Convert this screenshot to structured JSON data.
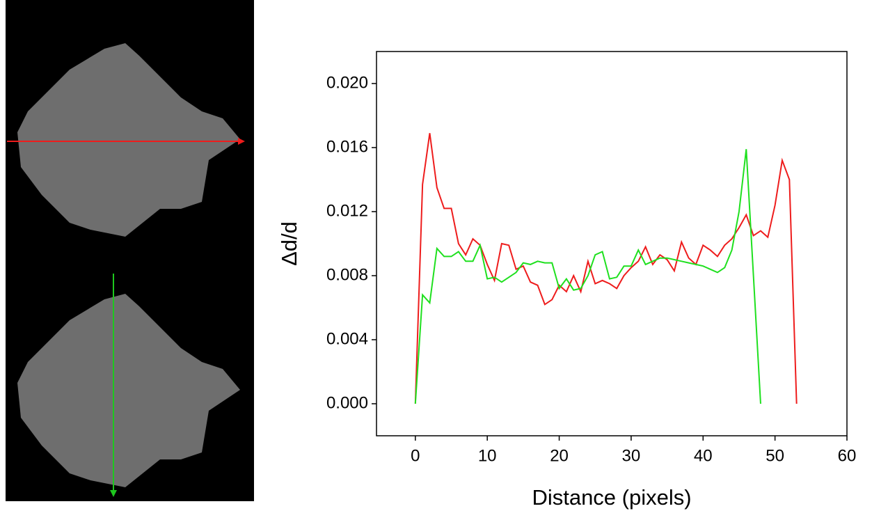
{
  "chart_data": {
    "type": "line",
    "xlabel": "Distance (pixels)",
    "ylabel": "Δd/d",
    "xlim": [
      -5.4,
      60
    ],
    "xticks": [
      0,
      10,
      20,
      30,
      40,
      50,
      60
    ],
    "ylim": [
      -0.002,
      0.022
    ],
    "yticks": [
      {
        "value": 0,
        "label": "0.000"
      },
      {
        "value": 0.004,
        "label": "0.004"
      },
      {
        "value": 0.008,
        "label": "0.008"
      },
      {
        "value": 0.012,
        "label": "0.012"
      },
      {
        "value": 0.016,
        "label": "0.016"
      },
      {
        "value": 0.02,
        "label": "0.020"
      }
    ],
    "series": [
      {
        "color": "#ee1c1c",
        "x": [
          0,
          1,
          2,
          3,
          4,
          5,
          6,
          7,
          8,
          9,
          10,
          11,
          12,
          13,
          14,
          15,
          16,
          17,
          18,
          19,
          20,
          21,
          22,
          23,
          24,
          25,
          26,
          27,
          28,
          29,
          30,
          31,
          32,
          33,
          34,
          35,
          36,
          37,
          38,
          39,
          40,
          41,
          42,
          43,
          44,
          45,
          46,
          47,
          48,
          49,
          50,
          51,
          52,
          53
        ],
        "values": [
          0,
          0.0137,
          0.0169,
          0.0135,
          0.0122,
          0.0122,
          0.01,
          0.0093,
          0.0103,
          0.0099,
          0.0087,
          0.0077,
          0.01,
          0.0099,
          0.0084,
          0.0086,
          0.0076,
          0.0074,
          0.0062,
          0.0065,
          0.0074,
          0.007,
          0.008,
          0.007,
          0.0089,
          0.0075,
          0.0077,
          0.0075,
          0.0072,
          0.008,
          0.0085,
          0.0089,
          0.0098,
          0.0087,
          0.0093,
          0.009,
          0.0083,
          0.0101,
          0.0091,
          0.0087,
          0.0099,
          0.0096,
          0.0092,
          0.0099,
          0.0103,
          0.011,
          0.0118,
          0.0105,
          0.0108,
          0.0104,
          0.0124,
          0.0152,
          0.014,
          0
        ]
      },
      {
        "color": "#1ee01e",
        "x": [
          0,
          1,
          2,
          3,
          4,
          5,
          6,
          7,
          8,
          9,
          10,
          11,
          12,
          13,
          14,
          15,
          16,
          17,
          18,
          19,
          20,
          21,
          22,
          23,
          24,
          25,
          26,
          27,
          28,
          29,
          30,
          31,
          32,
          33,
          34,
          35,
          36,
          37,
          38,
          39,
          40,
          41,
          42,
          43,
          44,
          45,
          46,
          47,
          48
        ],
        "values": [
          0,
          0.0068,
          0.0063,
          0.0097,
          0.0092,
          0.0092,
          0.0095,
          0.0089,
          0.0089,
          0.0099,
          0.0078,
          0.0079,
          0.0076,
          0.0079,
          0.0082,
          0.0088,
          0.0087,
          0.0089,
          0.0088,
          0.0088,
          0.0072,
          0.0078,
          0.0071,
          0.0072,
          0.008,
          0.0093,
          0.0095,
          0.0078,
          0.0079,
          0.0086,
          0.0086,
          0.0096,
          0.0087,
          0.0089,
          0.0091,
          0.0091,
          0.009,
          0.0089,
          0.0088,
          0.0087,
          0.0086,
          0.0084,
          0.0082,
          0.0085,
          0.0096,
          0.012,
          0.0159,
          0.008,
          0
        ]
      }
    ]
  }
}
